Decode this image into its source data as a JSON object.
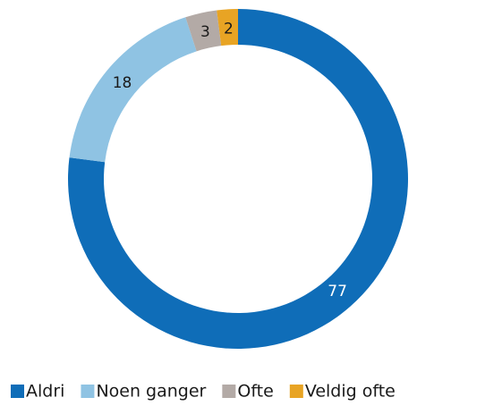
{
  "chart_data": {
    "type": "donut",
    "categories": [
      "Aldri",
      "Noen ganger",
      "Ofte",
      "Veldig ofte"
    ],
    "values": [
      77,
      18,
      3,
      2
    ],
    "colors": [
      "#0f6db8",
      "#8fc3e3",
      "#b3aaa6",
      "#e8a424"
    ],
    "legend": "bottom"
  }
}
